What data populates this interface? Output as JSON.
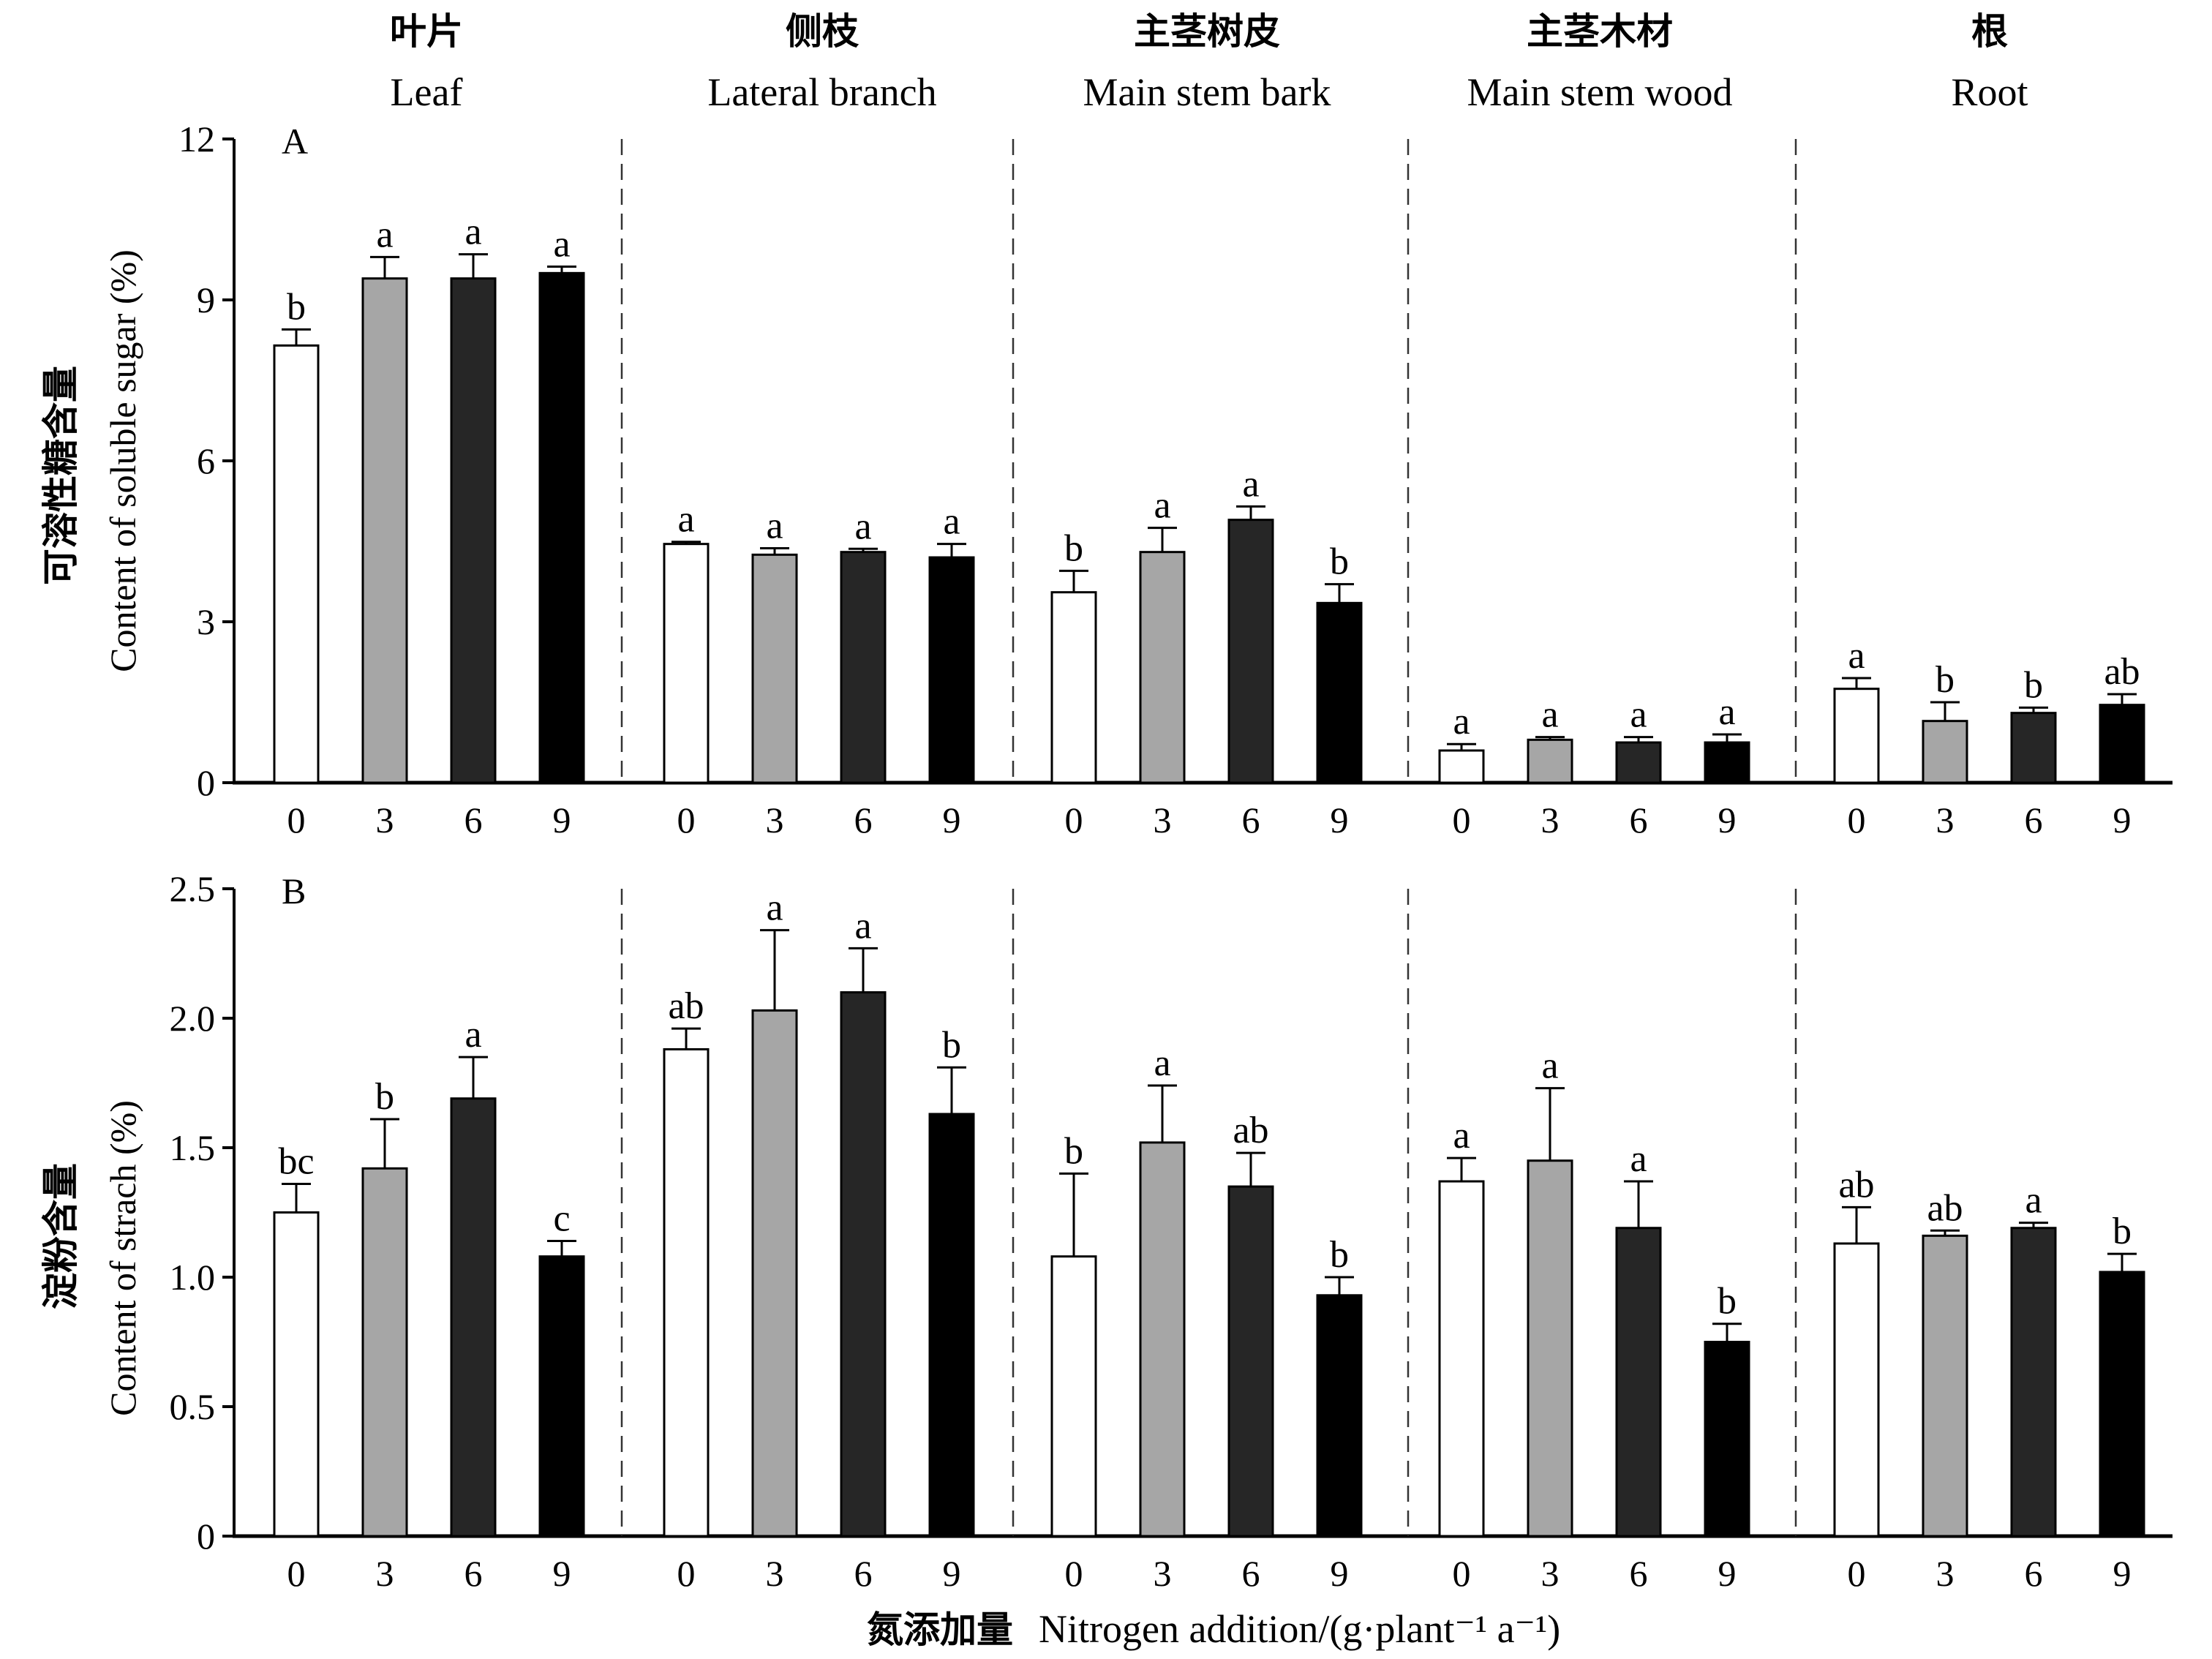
{
  "group_headers": [
    {
      "zh": "叶片",
      "en": "Leaf"
    },
    {
      "zh": "侧枝",
      "en": "Lateral branch"
    },
    {
      "zh": "主茎树皮",
      "en": "Main stem bark"
    },
    {
      "zh": "主茎木材",
      "en": "Main stem wood"
    },
    {
      "zh": "根",
      "en": "Root"
    }
  ],
  "x_axis": {
    "zh": "氮添加量",
    "en": "Nitrogen addition/(g·plant⁻¹ a⁻¹)",
    "treatments": [
      "0",
      "3",
      "6",
      "9"
    ]
  },
  "bar_colors": [
    "#ffffff",
    "#a6a6a6",
    "#262626",
    "#000000"
  ],
  "chart_data": [
    {
      "type": "bar",
      "panel": "A",
      "ylabel_zh": "可溶性糖含量",
      "ylabel_en": "Content of soluble sugar (%)",
      "ylim": [
        0,
        12
      ],
      "yticks": [
        0,
        3,
        6,
        9,
        12
      ],
      "ytick_labels": [
        "0",
        "3",
        "6",
        "9",
        "12"
      ],
      "groups": [
        "Leaf",
        "Lateral branch",
        "Main stem bark",
        "Main stem wood",
        "Root"
      ],
      "categories": [
        "0",
        "3",
        "6",
        "9"
      ],
      "values": [
        [
          8.15,
          9.4,
          9.4,
          9.5
        ],
        [
          4.45,
          4.25,
          4.3,
          4.2
        ],
        [
          3.55,
          4.3,
          4.9,
          3.35
        ],
        [
          0.6,
          0.8,
          0.75,
          0.75
        ],
        [
          1.75,
          1.15,
          1.3,
          1.45
        ]
      ],
      "errors": [
        [
          0.3,
          0.4,
          0.45,
          0.12
        ],
        [
          0.04,
          0.12,
          0.06,
          0.25
        ],
        [
          0.4,
          0.45,
          0.25,
          0.35
        ],
        [
          0.12,
          0.05,
          0.1,
          0.15
        ],
        [
          0.2,
          0.35,
          0.1,
          0.2
        ]
      ],
      "letters": [
        [
          "b",
          "a",
          "a",
          "a"
        ],
        [
          "a",
          "a",
          "a",
          "a"
        ],
        [
          "b",
          "a",
          "a",
          "b"
        ],
        [
          "a",
          "a",
          "a",
          "a"
        ],
        [
          "a",
          "b",
          "b",
          "ab"
        ]
      ]
    },
    {
      "type": "bar",
      "panel": "B",
      "ylabel_zh": "淀粉含量",
      "ylabel_en": "Content of strach (%)",
      "ylim": [
        0,
        2.5
      ],
      "yticks": [
        0,
        0.5,
        1.0,
        1.5,
        2.0,
        2.5
      ],
      "ytick_labels": [
        "0",
        "0.5",
        "1.0",
        "1.5",
        "2.0",
        "2.5"
      ],
      "groups": [
        "Leaf",
        "Lateral branch",
        "Main stem bark",
        "Main stem wood",
        "Root"
      ],
      "categories": [
        "0",
        "3",
        "6",
        "9"
      ],
      "values": [
        [
          1.25,
          1.42,
          1.69,
          1.08
        ],
        [
          1.88,
          2.03,
          2.1,
          1.63
        ],
        [
          1.08,
          1.52,
          1.35,
          0.93
        ],
        [
          1.37,
          1.45,
          1.19,
          0.75
        ],
        [
          1.13,
          1.16,
          1.19,
          1.02
        ]
      ],
      "errors": [
        [
          0.11,
          0.19,
          0.16,
          0.06
        ],
        [
          0.08,
          0.31,
          0.17,
          0.18
        ],
        [
          0.32,
          0.22,
          0.13,
          0.07
        ],
        [
          0.09,
          0.28,
          0.18,
          0.07
        ],
        [
          0.14,
          0.02,
          0.02,
          0.07
        ]
      ],
      "letters": [
        [
          "bc",
          "b",
          "a",
          "c"
        ],
        [
          "ab",
          "a",
          "a",
          "b"
        ],
        [
          "b",
          "a",
          "ab",
          "b"
        ],
        [
          "a",
          "a",
          "a",
          "b"
        ],
        [
          "ab",
          "ab",
          "a",
          "b"
        ]
      ]
    }
  ]
}
